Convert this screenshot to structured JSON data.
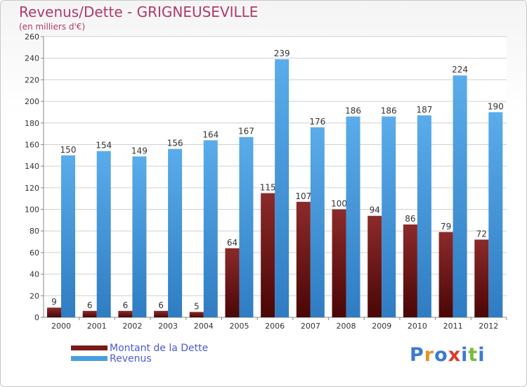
{
  "chart_data": {
    "type": "bar",
    "title": "Revenus/Dette - GRIGNEUSEVILLE",
    "subtitle": "(en milliers d'€)",
    "categories": [
      "2000",
      "2001",
      "2002",
      "2003",
      "2004",
      "2005",
      "2006",
      "2007",
      "2008",
      "2009",
      "2010",
      "2011",
      "2012"
    ],
    "series": [
      {
        "name": "Montant de la Dette",
        "color": "#7a1a1a",
        "values": [
          9,
          6,
          6,
          6,
          5,
          64,
          115,
          107,
          100,
          94,
          86,
          79,
          72
        ]
      },
      {
        "name": "Revenus",
        "color": "#4a9fe0",
        "values": [
          150,
          154,
          149,
          156,
          164,
          167,
          239,
          176,
          186,
          186,
          187,
          224,
          190
        ]
      }
    ],
    "ylim": [
      0,
      260
    ],
    "ytick_step": 20,
    "grid": true,
    "legend_position": "bottom-left"
  },
  "logo": {
    "text": "Proxiti",
    "letter_colors": [
      "#3a7bd5",
      "#e8912a",
      "#3a7bd5",
      "#e0382c",
      "#3a7bd5",
      "#7ab93a",
      "#3a7bd5"
    ]
  }
}
